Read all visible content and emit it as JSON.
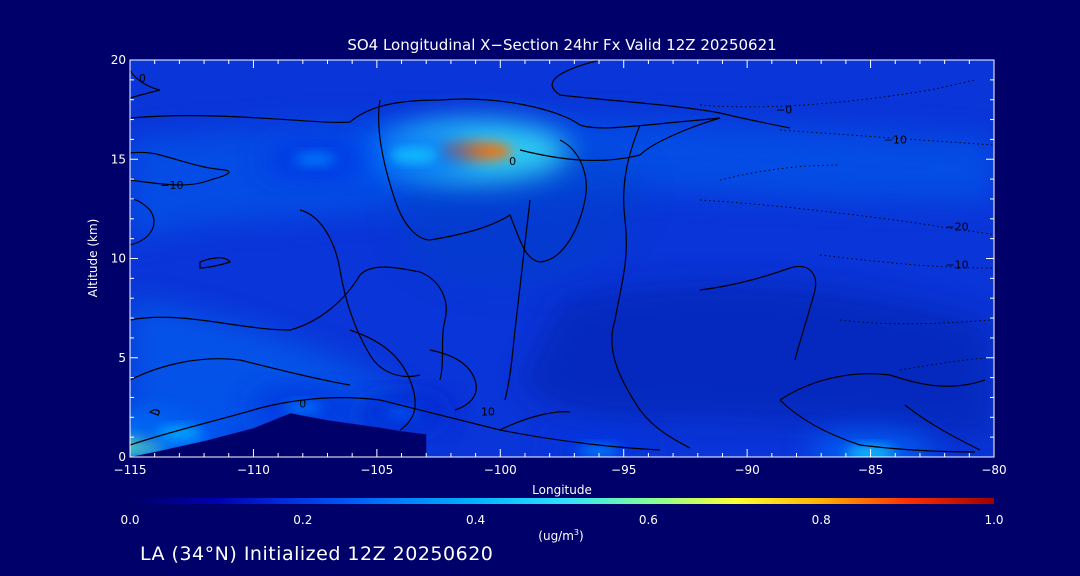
{
  "colors": {
    "background": "#00006a",
    "field_base": "#0a35d8",
    "colormap": [
      "#00006a",
      "#0000b0",
      "#0038e8",
      "#0078ff",
      "#00b4ff",
      "#2fe0ff",
      "#7fff9a",
      "#ffff30",
      "#ffb000",
      "#ff3000",
      "#a00000"
    ],
    "contour": "#000000",
    "text": "#ffffff"
  },
  "chart_data": {
    "type": "heatmap",
    "title": "SO4 Longitudinal X−Section 24hr  Fx Valid 12Z 20250621",
    "xlabel": "Longitude",
    "ylabel": "Altitude (km)",
    "xlim": [
      -115,
      -80
    ],
    "ylim": [
      0,
      20
    ],
    "x_ticks": [
      -115,
      -110,
      -105,
      -100,
      -95,
      -90,
      -85,
      -80
    ],
    "x_tick_labels": [
      "−115",
      "−110",
      "−105",
      "−100",
      "−95",
      "−90",
      "−85",
      "−80"
    ],
    "y_ticks": [
      0,
      5,
      10,
      15,
      20
    ],
    "y_tick_labels": [
      "0",
      "5",
      "10",
      "15",
      "20"
    ],
    "colorbar": {
      "min": 0.0,
      "max": 1.0,
      "ticks": [
        0.0,
        0.2,
        0.4,
        0.6,
        0.8,
        1.0
      ],
      "tick_labels": [
        "0.0",
        "0.2",
        "0.4",
        "0.6",
        "0.8",
        "1.0"
      ],
      "label_prefix": "(ug/m",
      "label_sup": "3",
      "label_suffix": ")"
    },
    "hotspots": [
      {
        "lon": -101.0,
        "alt": 15.4,
        "value": 0.85
      },
      {
        "lon": -103.5,
        "alt": 15.2,
        "value": 0.45
      },
      {
        "lon": -107.5,
        "alt": 15.0,
        "value": 0.32
      },
      {
        "lon": -114.8,
        "alt": 0.6,
        "value": 0.6
      },
      {
        "lon": -113.0,
        "alt": 1.2,
        "value": 0.4
      },
      {
        "lon": -108.0,
        "alt": 2.5,
        "value": 0.3
      },
      {
        "lon": -104.0,
        "alt": 2.2,
        "value": 0.25
      },
      {
        "lon": -96.0,
        "alt": 0.3,
        "value": 0.32
      },
      {
        "lon": -85.0,
        "alt": 0.2,
        "value": 0.45
      }
    ],
    "terrain": [
      {
        "lon": -115.0,
        "alt": 0.0
      },
      {
        "lon": -114.0,
        "alt": 0.25
      },
      {
        "lon": -112.0,
        "alt": 0.8
      },
      {
        "lon": -110.0,
        "alt": 1.45
      },
      {
        "lon": -108.5,
        "alt": 2.2
      },
      {
        "lon": -107.0,
        "alt": 1.85
      },
      {
        "lon": -105.0,
        "alt": 1.5
      },
      {
        "lon": -104.0,
        "alt": 1.3
      },
      {
        "lon": -103.0,
        "alt": 1.15
      }
    ],
    "contour_labels": [
      {
        "text": "0",
        "lon": -114.5,
        "alt": 18.9
      },
      {
        "text": "−10",
        "lon": -113.3,
        "alt": 13.5
      },
      {
        "text": "0",
        "lon": -99.5,
        "alt": 14.7
      },
      {
        "text": "−0",
        "lon": -88.5,
        "alt": 17.3
      },
      {
        "text": "−10",
        "lon": -84.0,
        "alt": 15.8
      },
      {
        "text": "−20",
        "lon": -81.5,
        "alt": 11.4
      },
      {
        "text": "−10",
        "lon": -81.5,
        "alt": 9.5
      },
      {
        "text": "0",
        "lon": -108.0,
        "alt": 2.5
      },
      {
        "text": "10",
        "lon": -100.5,
        "alt": 2.1
      }
    ]
  },
  "footer": "LA (34°N) Initialized 12Z 20250620"
}
